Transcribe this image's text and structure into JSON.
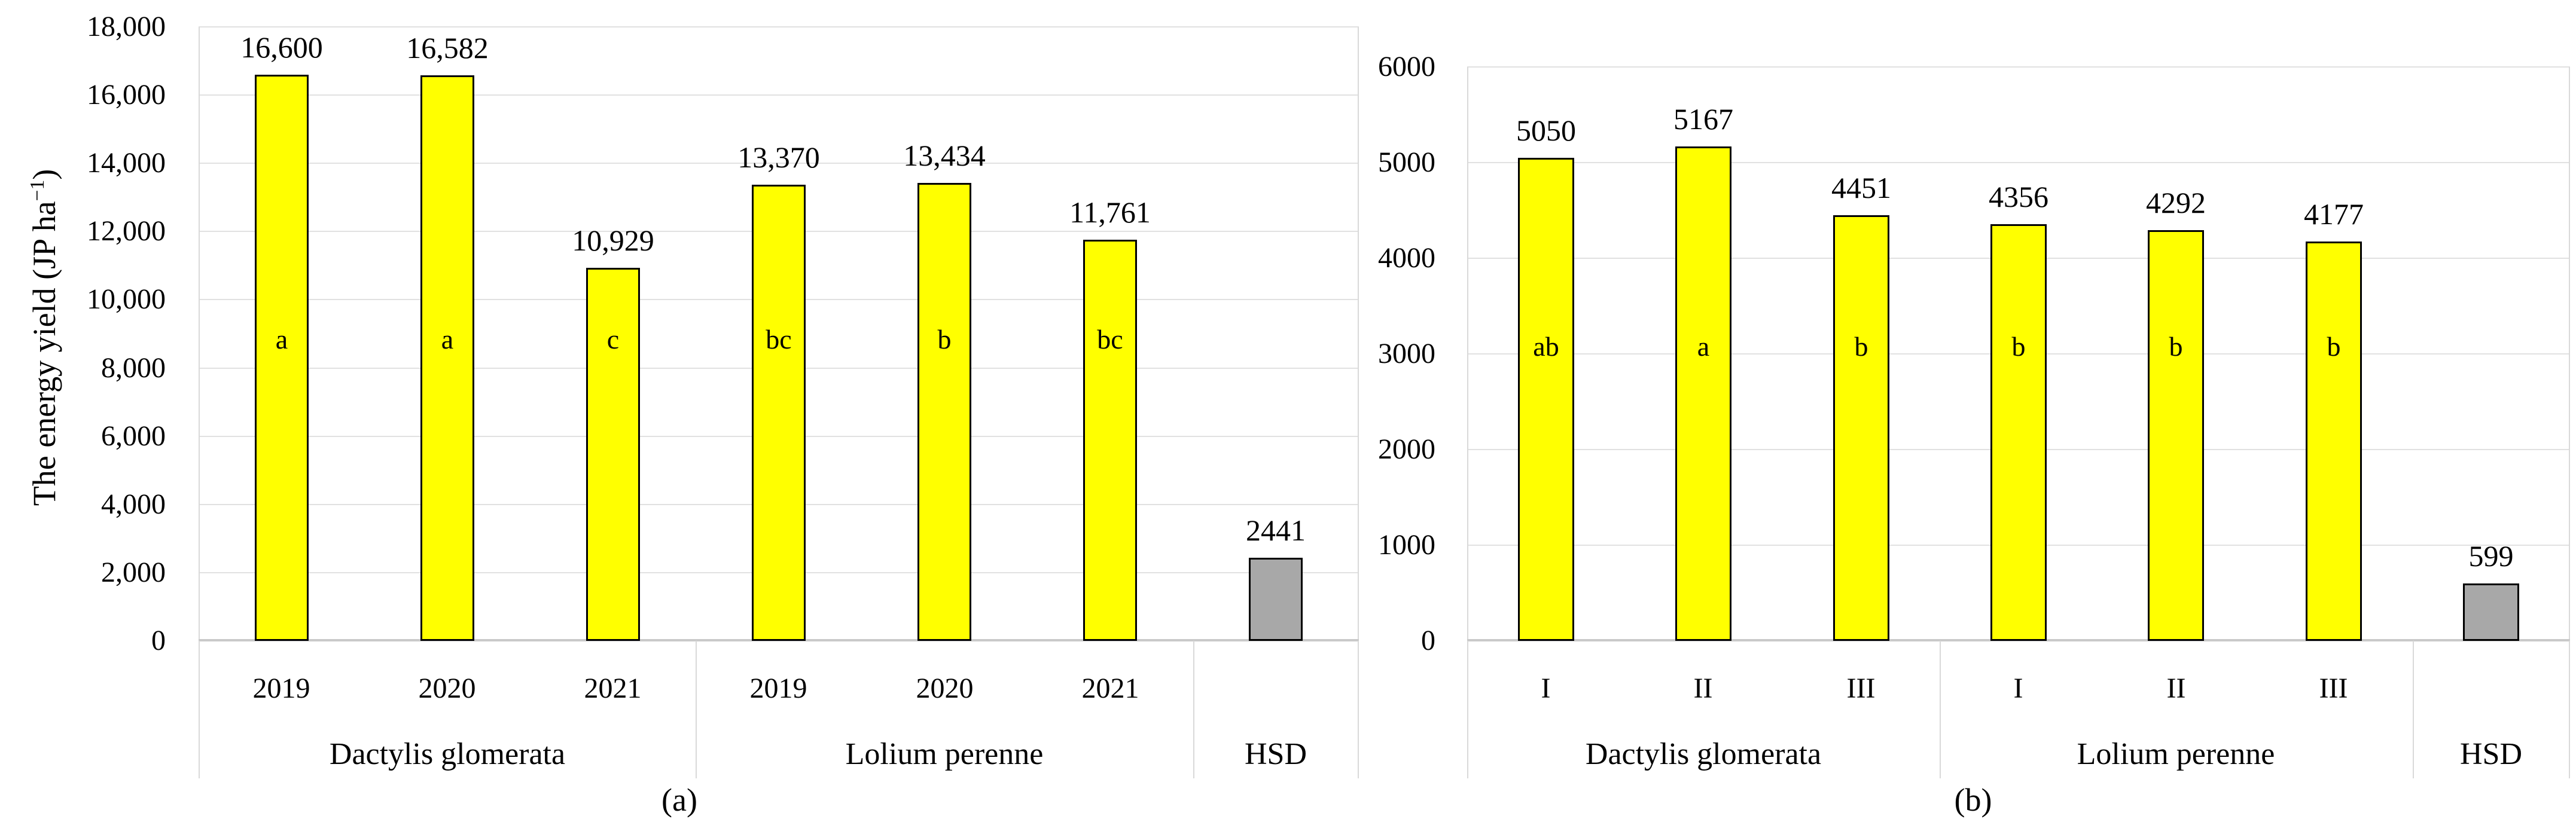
{
  "figure": {
    "background": "#ffffff",
    "colors": {
      "bar_yellow": "#ffff00",
      "bar_gray": "#a8a8a8",
      "bar_border": "#000000",
      "gridline": "#e1e1e1",
      "axis_line": "#c9c9c9",
      "divider": "#d9d9d9",
      "text": "#000000"
    }
  },
  "chart_data": [
    {
      "panel": "a",
      "type": "bar",
      "caption": "(a)",
      "y_axis": {
        "title": "The energy yield (JP ha⁻¹)",
        "title_parts": {
          "text": "The energy yield (JP ha",
          "superscript": "−1",
          "close": ")"
        },
        "min": 0,
        "max": 18000,
        "step": 2000,
        "tick_labels": [
          "18,000",
          "16,000",
          "14,000",
          "12,000",
          "10,000",
          "8,000",
          "6,000",
          "4,000",
          "2,000",
          "0"
        ]
      },
      "grid": true,
      "legend": "none",
      "letter_row_value": 8900,
      "groups": [
        {
          "label": "Dactylis glomerata",
          "bars": [
            {
              "category": "2019",
              "value": 16600,
              "value_label": "16,600",
              "letter": "a",
              "color_key": "bar_yellow"
            },
            {
              "category": "2020",
              "value": 16582,
              "value_label": "16,582",
              "letter": "a",
              "color_key": "bar_yellow"
            },
            {
              "category": "2021",
              "value": 10929,
              "value_label": "10,929",
              "letter": "c",
              "color_key": "bar_yellow"
            }
          ]
        },
        {
          "label": "Lolium perenne",
          "bars": [
            {
              "category": "2019",
              "value": 13370,
              "value_label": "13,370",
              "letter": "bc",
              "color_key": "bar_yellow"
            },
            {
              "category": "2020",
              "value": 13434,
              "value_label": "13,434",
              "letter": "b",
              "color_key": "bar_yellow"
            },
            {
              "category": "2021",
              "value": 11761,
              "value_label": "11,761",
              "letter": "bc",
              "color_key": "bar_yellow"
            }
          ]
        },
        {
          "label": "HSD",
          "bars": [
            {
              "category": "",
              "value": 2441,
              "value_label": "2441",
              "letter": "",
              "color_key": "bar_gray"
            }
          ]
        }
      ]
    },
    {
      "panel": "b",
      "type": "bar",
      "caption": "(b)",
      "y_axis": {
        "title": "",
        "title_parts": null,
        "min": 0,
        "max": 6000,
        "step": 1000,
        "tick_labels": [
          "6000",
          "5000",
          "4000",
          "3000",
          "2000",
          "1000",
          "0"
        ]
      },
      "grid": true,
      "legend": "none",
      "letter_row_value": 3050,
      "groups": [
        {
          "label": "Dactylis glomerata",
          "bars": [
            {
              "category": "I",
              "value": 5050,
              "value_label": "5050",
              "letter": "ab",
              "color_key": "bar_yellow"
            },
            {
              "category": "II",
              "value": 5167,
              "value_label": "5167",
              "letter": "a",
              "color_key": "bar_yellow"
            },
            {
              "category": "III",
              "value": 4451,
              "value_label": "4451",
              "letter": "b",
              "color_key": "bar_yellow"
            }
          ]
        },
        {
          "label": "Lolium perenne",
          "bars": [
            {
              "category": "I",
              "value": 4356,
              "value_label": "4356",
              "letter": "b",
              "color_key": "bar_yellow"
            },
            {
              "category": "II",
              "value": 4292,
              "value_label": "4292",
              "letter": "b",
              "color_key": "bar_yellow"
            },
            {
              "category": "III",
              "value": 4177,
              "value_label": "4177",
              "letter": "b",
              "color_key": "bar_yellow"
            }
          ]
        },
        {
          "label": "HSD",
          "bars": [
            {
              "category": "",
              "value": 599,
              "value_label": "599",
              "letter": "",
              "color_key": "bar_gray"
            }
          ]
        }
      ]
    }
  ]
}
